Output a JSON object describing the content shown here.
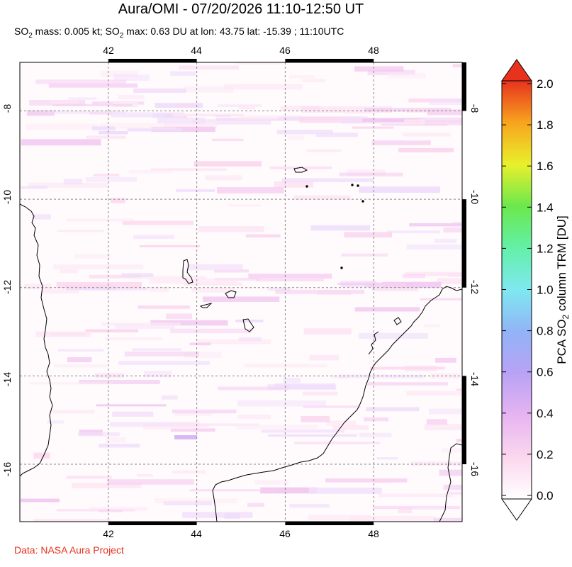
{
  "title": "Aura/OMI - 07/20/2026 11:10-12:50 UT",
  "subtitle": {
    "mass_prefix": "SO",
    "mass_sub": "2",
    "mass_text": " mass: 0.005 kt; SO",
    "max_sub": "2",
    "max_text": " max: 0.63 DU at lon: 43.75 lat: -15.39 ; 11:10UTC"
  },
  "credit": "Data: NASA Aura Project",
  "map": {
    "lon_range": [
      40.0,
      50.0
    ],
    "lat_range": [
      -17.3,
      -6.9
    ],
    "lon_ticks": [
      42,
      44,
      46,
      48
    ],
    "lat_ticks": [
      -8,
      -10,
      -12,
      -14,
      -16
    ],
    "lon_tick_labels": [
      "42",
      "44",
      "46",
      "48"
    ],
    "lat_tick_labels": [
      "-8",
      "-10",
      "-12",
      "-14",
      "-16"
    ],
    "grid": "dashed",
    "max_point": {
      "lon": 43.75,
      "lat": -15.39,
      "value": 0.63
    }
  },
  "colorbar": {
    "title_prefix": "PCA SO",
    "title_sub": "2",
    "title_suffix": " column TRM [DU]",
    "min": 0.0,
    "max": 2.0,
    "ticks": [
      "0.0",
      "0.2",
      "0.4",
      "0.6",
      "0.8",
      "1.0",
      "1.2",
      "1.4",
      "1.6",
      "1.8",
      "2.0"
    ],
    "colors": [
      "#ffffff",
      "#fbd7ee",
      "#e6b4f2",
      "#b9a2f5",
      "#92b3f7",
      "#7fe8f0",
      "#63f0a8",
      "#6be84c",
      "#e9f02c",
      "#f7a41e",
      "#e8321e"
    ]
  }
}
